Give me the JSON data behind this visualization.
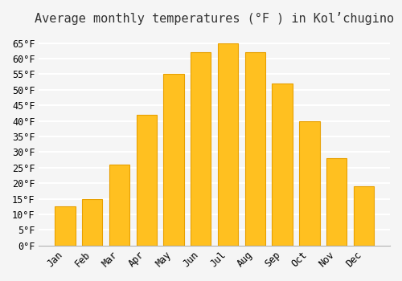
{
  "title": "Average monthly temperatures (°F ) in Kolʼchugino",
  "months": [
    "Jan",
    "Feb",
    "Mar",
    "Apr",
    "May",
    "Jun",
    "Jul",
    "Aug",
    "Sep",
    "Oct",
    "Nov",
    "Dec"
  ],
  "values": [
    12.5,
    15.0,
    26.0,
    42.0,
    55.0,
    62.0,
    65.0,
    62.0,
    52.0,
    40.0,
    28.0,
    19.0
  ],
  "bar_color": "#FFC020",
  "bar_edge_color": "#E8A000",
  "background_color": "#F5F5F5",
  "grid_color": "#FFFFFF",
  "tick_color": "#333333",
  "title_color": "#333333",
  "ylim": [
    0,
    68
  ],
  "yticks": [
    0,
    5,
    10,
    15,
    20,
    25,
    30,
    35,
    40,
    45,
    50,
    55,
    60,
    65
  ],
  "title_fontsize": 11,
  "tick_fontsize": 8.5,
  "font_family": "monospace"
}
